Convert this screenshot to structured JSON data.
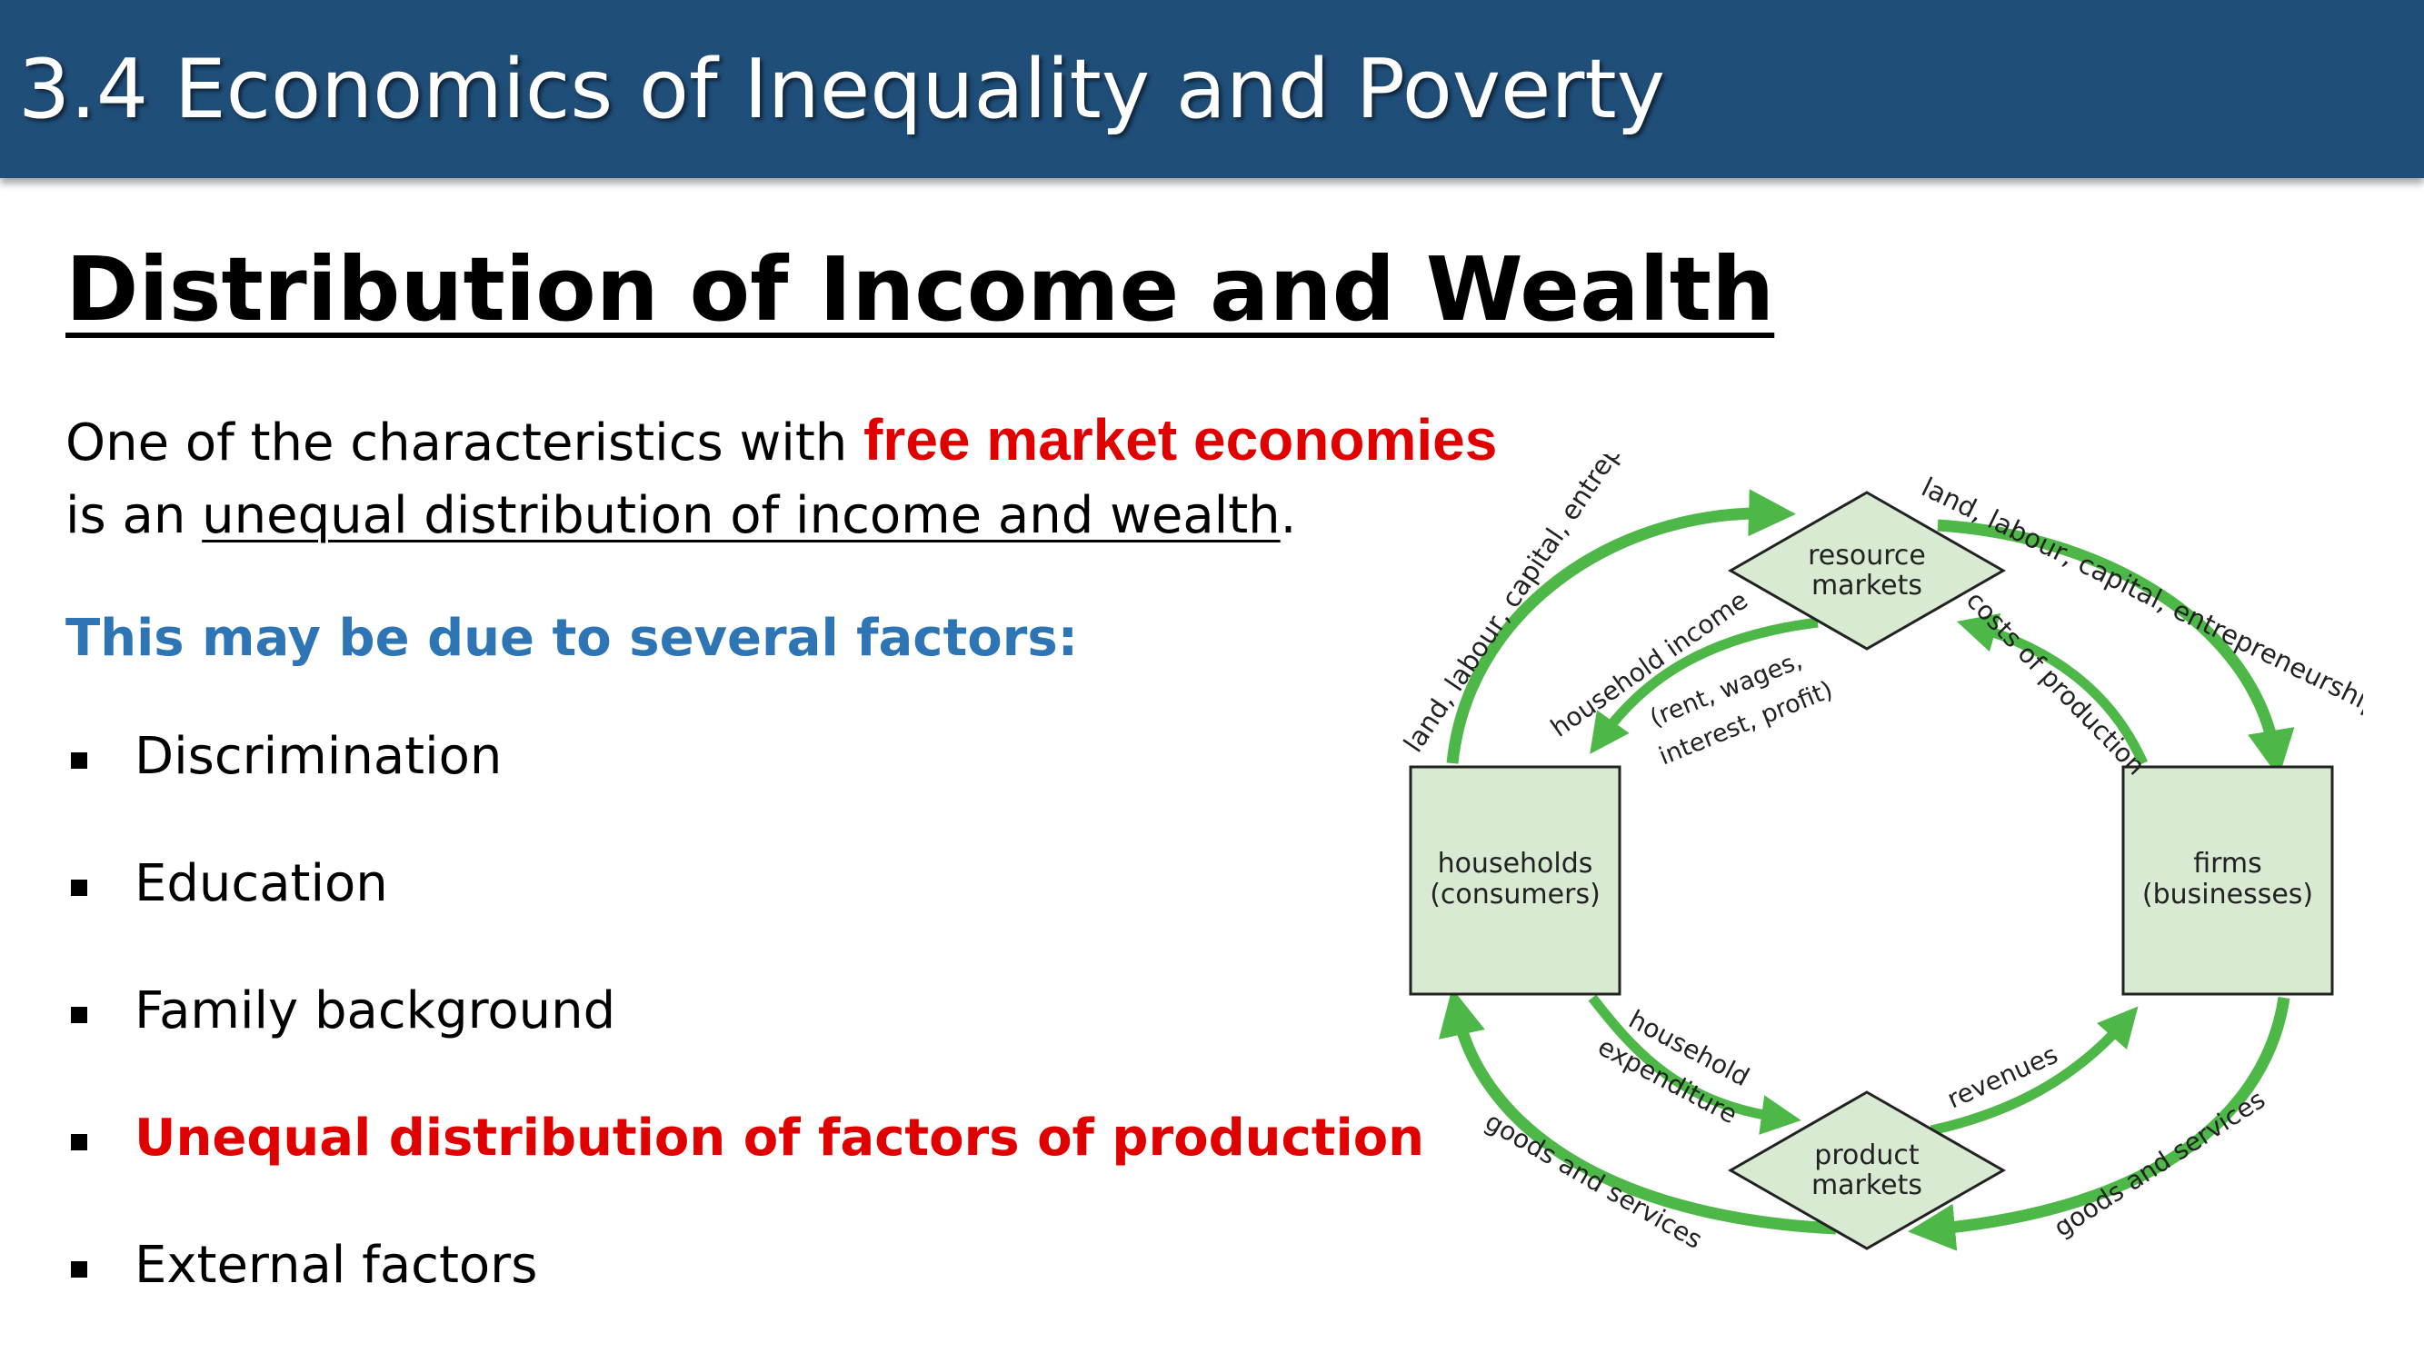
{
  "header": {
    "title": "3.4 Economics of Inequality and Poverty"
  },
  "section_title": "Distribution of Income and Wealth",
  "intro": {
    "part1": "One of the characteristics with ",
    "highlight": "free market economies",
    "part2": "is an ",
    "underlined": "unequal distribution of income and wealth",
    "part3": "."
  },
  "factors_heading": "This may be due to several factors:",
  "factors": [
    "Discrimination",
    "Education",
    "Family background",
    "Unequal distribution of factors of production",
    "External factors"
  ],
  "diagram": {
    "households": [
      "households",
      "(consumers)"
    ],
    "firms": [
      "firms",
      "(businesses)"
    ],
    "resource_markets": [
      "resource",
      "markets"
    ],
    "product_markets": [
      "product",
      "markets"
    ],
    "outer_top_left": "land, labour, capital, entrepreneurship",
    "outer_top_right": "land, labour, capital, entrepreneurship",
    "household_income": "household income",
    "household_income_detail_1": "(rent, wages,",
    "household_income_detail_2": "interest, profit)",
    "costs_of_production": "costs of production",
    "household_expenditure_1": "household",
    "household_expenditure_2": "expenditure",
    "revenues": "revenues",
    "goods_left": "goods and services",
    "goods_right": "goods and services"
  },
  "colors": {
    "header_bg": "#1f4e79",
    "highlight_red": "#e00000",
    "heading_blue": "#2e75b6",
    "arrow_green": "#4db848",
    "box_fill": "#d9ead3"
  }
}
